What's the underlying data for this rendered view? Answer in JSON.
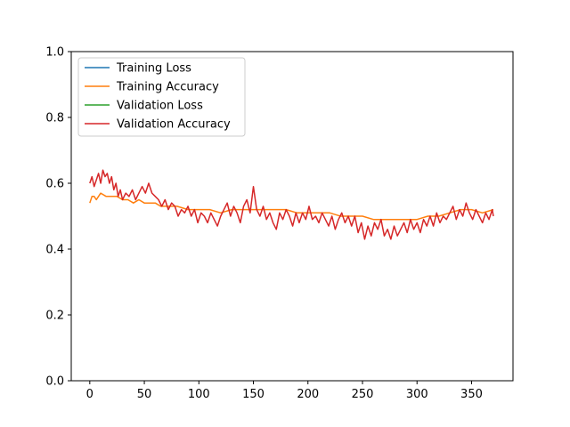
{
  "chart_data": {
    "type": "line",
    "title": "",
    "xlabel": "",
    "ylabel": "",
    "xlim": [
      -17,
      388
    ],
    "ylim": [
      0,
      1
    ],
    "xticks": [
      0,
      50,
      100,
      150,
      200,
      250,
      300,
      350
    ],
    "yticks": [
      0.0,
      0.2,
      0.4,
      0.6,
      0.8,
      1.0
    ],
    "xtick_labels": [
      "0",
      "50",
      "100",
      "150",
      "200",
      "250",
      "300",
      "350"
    ],
    "ytick_labels": [
      "0.0",
      "0.2",
      "0.4",
      "0.6",
      "0.8",
      "1.0"
    ],
    "grid": false,
    "legend_position": "upper-left",
    "series": [
      {
        "name": "Training Loss",
        "color": "#1f77b4",
        "x": [],
        "y": []
      },
      {
        "name": "Training Accuracy",
        "color": "#ff7f0e",
        "x": [
          0,
          2,
          4,
          6,
          10,
          15,
          20,
          25,
          30,
          35,
          40,
          45,
          50,
          55,
          60,
          65,
          70,
          80,
          90,
          100,
          110,
          120,
          130,
          140,
          150,
          160,
          170,
          180,
          190,
          200,
          210,
          220,
          230,
          240,
          250,
          260,
          270,
          280,
          290,
          300,
          310,
          320,
          330,
          340,
          350,
          360,
          370
        ],
        "y": [
          0.54,
          0.56,
          0.56,
          0.55,
          0.57,
          0.56,
          0.56,
          0.56,
          0.55,
          0.55,
          0.54,
          0.55,
          0.54,
          0.54,
          0.54,
          0.53,
          0.53,
          0.53,
          0.52,
          0.52,
          0.52,
          0.51,
          0.52,
          0.52,
          0.52,
          0.52,
          0.52,
          0.52,
          0.51,
          0.51,
          0.51,
          0.51,
          0.5,
          0.5,
          0.5,
          0.49,
          0.49,
          0.49,
          0.49,
          0.49,
          0.5,
          0.5,
          0.51,
          0.52,
          0.52,
          0.51,
          0.52
        ]
      },
      {
        "name": "Validation Loss",
        "color": "#2ca02c",
        "x": [],
        "y": []
      },
      {
        "name": "Validation Accuracy",
        "color": "#d62728",
        "x": [
          0,
          2,
          4,
          6,
          8,
          10,
          12,
          14,
          16,
          18,
          20,
          22,
          24,
          26,
          28,
          30,
          33,
          36,
          39,
          42,
          45,
          48,
          51,
          54,
          57,
          60,
          63,
          66,
          69,
          72,
          75,
          78,
          81,
          84,
          87,
          90,
          93,
          96,
          99,
          102,
          105,
          108,
          111,
          114,
          117,
          120,
          123,
          126,
          129,
          132,
          135,
          138,
          141,
          144,
          147,
          150,
          153,
          156,
          159,
          162,
          165,
          168,
          171,
          174,
          177,
          180,
          183,
          186,
          189,
          192,
          195,
          198,
          201,
          204,
          207,
          210,
          213,
          216,
          219,
          222,
          225,
          228,
          231,
          234,
          237,
          240,
          243,
          246,
          249,
          252,
          255,
          258,
          261,
          264,
          267,
          270,
          273,
          276,
          279,
          282,
          285,
          288,
          291,
          294,
          297,
          300,
          303,
          306,
          309,
          312,
          315,
          318,
          321,
          324,
          327,
          330,
          333,
          336,
          339,
          342,
          345,
          348,
          351,
          354,
          357,
          360,
          363,
          366,
          369,
          370
        ],
        "y": [
          0.6,
          0.62,
          0.59,
          0.61,
          0.63,
          0.6,
          0.64,
          0.62,
          0.63,
          0.6,
          0.62,
          0.58,
          0.6,
          0.56,
          0.58,
          0.55,
          0.57,
          0.56,
          0.58,
          0.55,
          0.57,
          0.59,
          0.57,
          0.6,
          0.57,
          0.56,
          0.55,
          0.53,
          0.55,
          0.52,
          0.54,
          0.53,
          0.5,
          0.52,
          0.51,
          0.53,
          0.5,
          0.52,
          0.48,
          0.51,
          0.5,
          0.48,
          0.51,
          0.49,
          0.47,
          0.5,
          0.52,
          0.54,
          0.5,
          0.53,
          0.51,
          0.48,
          0.53,
          0.55,
          0.51,
          0.59,
          0.52,
          0.5,
          0.53,
          0.49,
          0.51,
          0.48,
          0.46,
          0.51,
          0.49,
          0.52,
          0.5,
          0.47,
          0.51,
          0.48,
          0.51,
          0.49,
          0.53,
          0.49,
          0.5,
          0.48,
          0.51,
          0.49,
          0.47,
          0.5,
          0.46,
          0.49,
          0.51,
          0.48,
          0.5,
          0.47,
          0.5,
          0.45,
          0.48,
          0.43,
          0.47,
          0.44,
          0.48,
          0.46,
          0.49,
          0.44,
          0.46,
          0.43,
          0.47,
          0.44,
          0.46,
          0.48,
          0.45,
          0.49,
          0.46,
          0.48,
          0.45,
          0.49,
          0.47,
          0.5,
          0.47,
          0.51,
          0.48,
          0.5,
          0.49,
          0.51,
          0.53,
          0.49,
          0.52,
          0.5,
          0.54,
          0.51,
          0.49,
          0.52,
          0.5,
          0.48,
          0.51,
          0.49,
          0.52,
          0.5
        ]
      }
    ]
  }
}
